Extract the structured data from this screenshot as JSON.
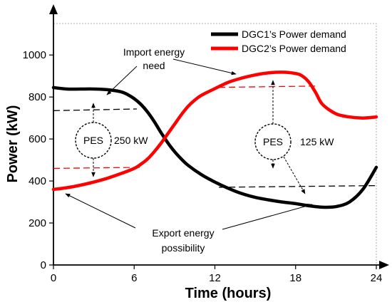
{
  "chart_data": {
    "type": "line",
    "xlabel": "Time (hours)",
    "ylabel": "Power (kW)",
    "xlim": [
      0,
      24
    ],
    "ylim": [
      0,
      1150
    ],
    "xticks": [
      0,
      6,
      12,
      18,
      24
    ],
    "yticks": [
      0,
      200,
      400,
      600,
      800,
      1000
    ],
    "legend_position": "top-right",
    "series": [
      {
        "name": "DGC1’s Power demand",
        "color": "#000000",
        "x": [
          0,
          1,
          2,
          3,
          4,
          5,
          5.5,
          6,
          6.5,
          7,
          7.5,
          8,
          8.5,
          9,
          9.5,
          10,
          11,
          12,
          13,
          14,
          15,
          16,
          17,
          18,
          19,
          20,
          21,
          22,
          23,
          24
        ],
        "y": [
          845,
          838,
          838,
          838,
          835,
          825,
          812,
          792,
          765,
          728,
          682,
          630,
          582,
          540,
          505,
          475,
          430,
          395,
          365,
          340,
          322,
          310,
          300,
          292,
          282,
          275,
          278,
          300,
          360,
          465
        ]
      },
      {
        "name": "DGC2’s Power demand",
        "color": "#ff0000",
        "x": [
          0,
          1,
          2,
          3,
          4,
          5,
          6,
          6.5,
          7,
          7.5,
          8,
          8.5,
          9,
          9.5,
          10,
          10.5,
          11,
          12,
          13,
          14,
          15,
          16,
          17,
          18,
          18.5,
          19,
          19.5,
          20,
          21,
          22,
          23,
          24
        ],
        "y": [
          360,
          368,
          380,
          395,
          413,
          435,
          460,
          480,
          505,
          540,
          580,
          625,
          670,
          715,
          755,
          785,
          808,
          840,
          870,
          890,
          905,
          915,
          918,
          912,
          900,
          870,
          820,
          765,
          720,
          705,
          700,
          705
        ]
      }
    ],
    "reference_lines": [
      {
        "series": "DGC1’s Power demand",
        "x": [
          0,
          6.2
        ],
        "y": [
          735,
          743
        ]
      },
      {
        "series": "DGC1’s Power demand",
        "x": [
          12.3,
          24
        ],
        "y": [
          370,
          378
        ]
      },
      {
        "series": "DGC2’s Power demand",
        "x": [
          0,
          6.5
        ],
        "y": [
          460,
          465
        ]
      },
      {
        "series": "DGC2’s Power demand",
        "x": [
          12.3,
          19.5
        ],
        "y": [
          846,
          852
        ]
      }
    ],
    "annotations": {
      "import_line1": "Import energy",
      "import_line2": "need",
      "export_line1": "Export energy",
      "export_line2": "possibility",
      "pes_label": "PES",
      "pes_left_value": "250 kW",
      "pes_right_value": "125 kW"
    }
  }
}
